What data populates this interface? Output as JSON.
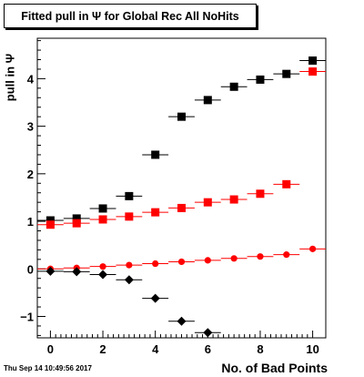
{
  "chart_data": {
    "type": "scatter",
    "title": "Fitted pull in Ψ for Global Rec All NoHits",
    "xlabel": "No. of Bad Points",
    "ylabel": "pull in Ψ",
    "xlim": [
      -0.5,
      10.5
    ],
    "ylim": [
      -1.45,
      4.85
    ],
    "xticks": [
      0,
      2,
      4,
      6,
      8,
      10
    ],
    "yticks": [
      -1,
      0,
      1,
      2,
      3,
      4
    ],
    "grid": false,
    "series": [
      {
        "marker": "square",
        "color": "#000000",
        "x": [
          0,
          1,
          2,
          3,
          4,
          5,
          6,
          7,
          8,
          9,
          10
        ],
        "y": [
          1.02,
          1.06,
          1.27,
          1.53,
          2.4,
          3.2,
          3.55,
          3.83,
          3.98,
          4.1,
          4.38
        ]
      },
      {
        "marker": "square",
        "color": "#ff0000",
        "x": [
          0,
          1,
          2,
          3,
          4,
          5,
          6,
          7,
          8,
          9,
          10
        ],
        "y": [
          0.93,
          0.96,
          1.04,
          1.1,
          1.19,
          1.28,
          1.4,
          1.46,
          1.58,
          1.78,
          4.15
        ]
      },
      {
        "marker": "circle",
        "color": "#ff0000",
        "x": [
          0,
          1,
          2,
          3,
          4,
          5,
          6,
          7,
          8,
          9,
          10
        ],
        "y": [
          0.0,
          0.02,
          0.05,
          0.08,
          0.11,
          0.15,
          0.18,
          0.22,
          0.26,
          0.3,
          0.42
        ]
      },
      {
        "marker": "diamond",
        "color": "#000000",
        "x": [
          0,
          1,
          2,
          3,
          4,
          5,
          6
        ],
        "y": [
          -0.05,
          -0.06,
          -0.12,
          -0.23,
          -0.62,
          -1.1,
          -1.34
        ]
      }
    ]
  },
  "timestamp": "Thu Sep 14 10:49:56 2017"
}
